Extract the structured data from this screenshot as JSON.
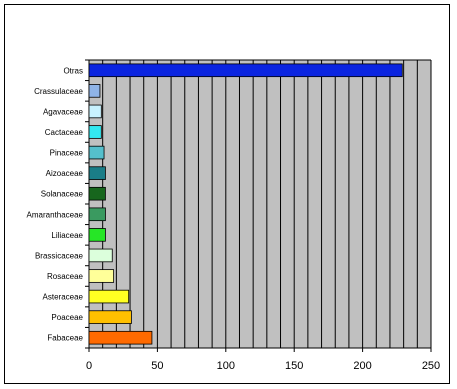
{
  "chart_data": {
    "type": "bar",
    "orientation": "horizontal",
    "title": "",
    "xlabel": "",
    "ylabel": "",
    "categories": [
      "Otras",
      "Crassulaceae",
      "Agavaceae",
      "Cactaceae",
      "Pinaceae",
      "Aizoaceae",
      "Solanaceae",
      "Amaranthaceae",
      "Liliaceae",
      "Brassicaceae",
      "Rosaceae",
      "Asteraceae",
      "Poaceae",
      "Fabaceae"
    ],
    "values": [
      229,
      8,
      9,
      9,
      11,
      12,
      12,
      12,
      12,
      17,
      18,
      29,
      31,
      46
    ],
    "colors": [
      "#0a24e0",
      "#8fb4e8",
      "#c8f2ff",
      "#33e8f0",
      "#55bfcc",
      "#1a7d87",
      "#17661d",
      "#3a9a60",
      "#26e626",
      "#dcffdc",
      "#ffff99",
      "#ffff22",
      "#ffc000",
      "#ff6a00"
    ],
    "xlim": [
      0,
      250
    ],
    "xticks": [
      "0",
      "50",
      "100",
      "150",
      "200",
      "250"
    ],
    "x_gridline_step": 10,
    "plot_background": "#c0c0c0",
    "grid": true,
    "legend": "none"
  }
}
